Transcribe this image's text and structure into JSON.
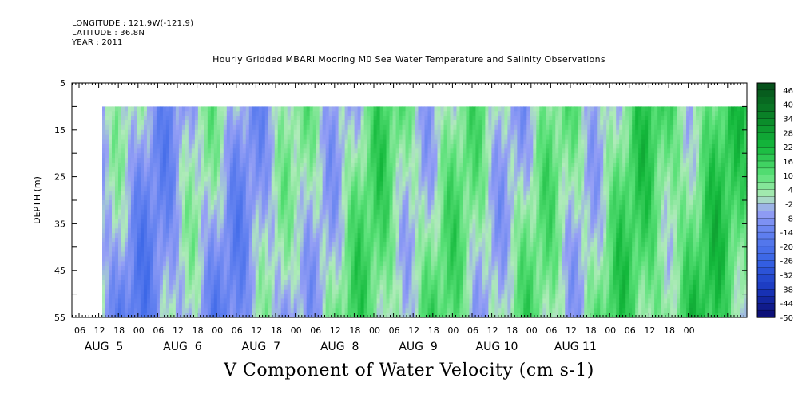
{
  "header": {
    "longitude": "LONGITUDE : 121.9W(-121.9)",
    "latitude": "LATITUDE : 36.8N",
    "year": "YEAR : 2011"
  },
  "chart_data": {
    "type": "heatmap",
    "title": "Hourly Gridded MBARI Mooring M0 Sea Water Temperature and Salinity Observations",
    "xlabel": "V Component of Water Velocity (cm s-1)",
    "ylabel": "DEPTH (m)",
    "y_range": [
      5,
      55
    ],
    "y_ticks": [
      5,
      15,
      25,
      35,
      45,
      55
    ],
    "data_depth_range": [
      10,
      55
    ],
    "x_hour_ticks": [
      "06",
      "12",
      "18",
      "00",
      "06",
      "12",
      "18",
      "00",
      "06",
      "12",
      "18",
      "00",
      "06",
      "12",
      "18",
      "00",
      "06",
      "12",
      "18",
      "00",
      "06",
      "12",
      "18",
      "00",
      "06",
      "12",
      "18",
      "00",
      "06",
      "12",
      "18",
      "00"
    ],
    "day_labels": [
      "AUG  5",
      "AUG  6",
      "AUG  7",
      "AUG  8",
      "AUG  9",
      "AUG 10",
      "AUG 11"
    ],
    "colorbar_labels": [
      "46",
      "40",
      "34",
      "28",
      "22",
      "16",
      "10",
      "4",
      "-2",
      "-8",
      "-14",
      "-20",
      "-26",
      "-32",
      "-38",
      "-44",
      "-50"
    ],
    "colorbar_range": [
      -50,
      49
    ],
    "colorbar_step": 3,
    "approx_pattern_by_day": [
      {
        "day": "AUG  5",
        "mean_v": -6
      },
      {
        "day": "AUG  6",
        "mean_v": -3
      },
      {
        "day": "AUG  7",
        "mean_v": -2
      },
      {
        "day": "AUG  8",
        "mean_v": 6
      },
      {
        "day": "AUG  9",
        "mean_v": 2
      },
      {
        "day": "AUG 10",
        "mean_v": 1
      },
      {
        "day": "AUG 11",
        "mean_v": 10
      }
    ]
  }
}
